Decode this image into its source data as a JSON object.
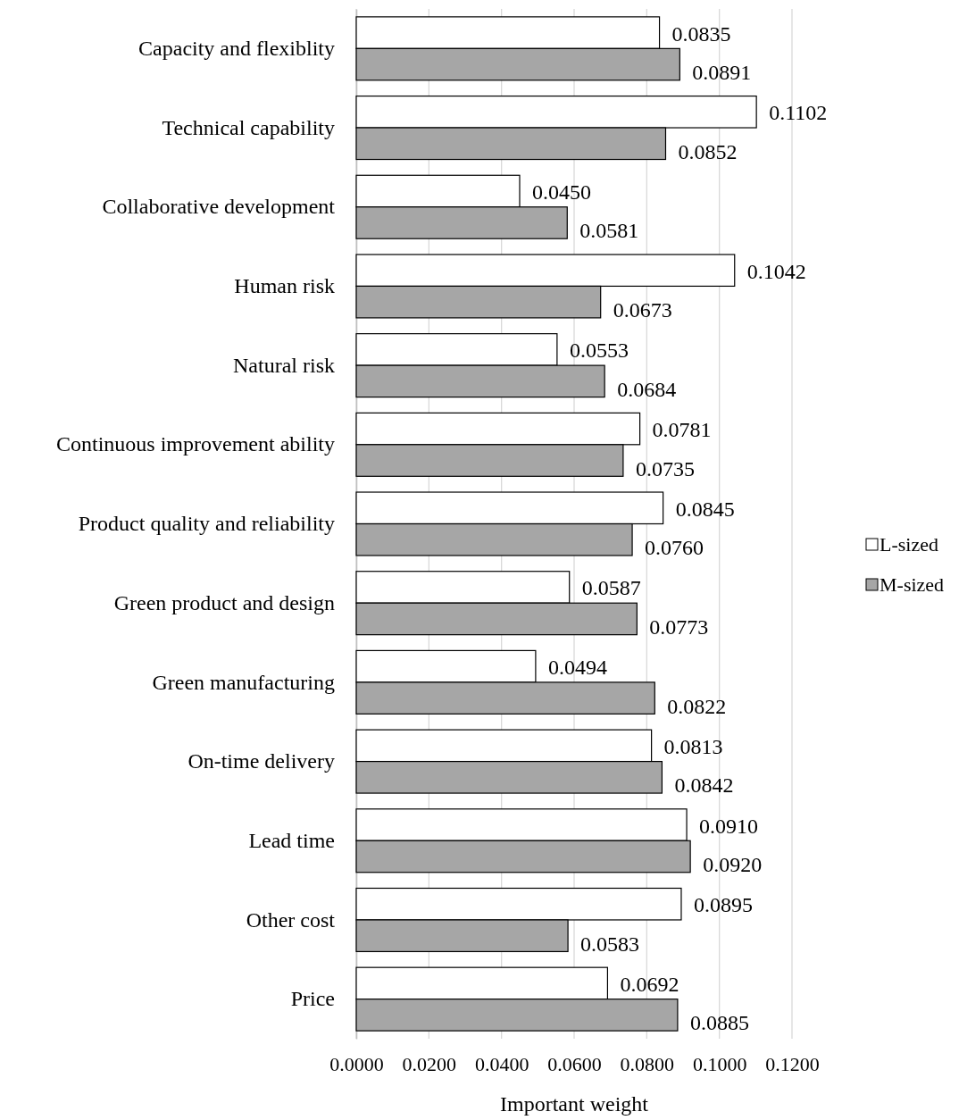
{
  "chart_data": {
    "type": "bar",
    "orientation": "horizontal",
    "xlabel": "Important weight",
    "categories": [
      "Capacity and flexiblity",
      "Technical capability",
      "Collaborative development",
      "Human risk",
      "Natural risk",
      "Continuous improvement ability",
      "Product quality and reliability",
      "Green product and design",
      "Green manufacturing",
      "On-time delivery",
      "Lead time",
      "Other cost",
      "Price"
    ],
    "series": [
      {
        "name": "L-sized",
        "color": "#ffffff",
        "values": [
          0.0835,
          0.1102,
          0.045,
          0.1042,
          0.0553,
          0.0781,
          0.0845,
          0.0587,
          0.0494,
          0.0813,
          0.091,
          0.0895,
          0.0692
        ],
        "value_labels": [
          "0.0835",
          "0.1102",
          "0.0450",
          "0.1042",
          "0.0553",
          "0.0781",
          "0.0845",
          "0.0587",
          "0.0494",
          "0.0813",
          "0.0910",
          "0.0895",
          "0.0692"
        ]
      },
      {
        "name": "M-sized",
        "color": "#a6a6a6",
        "values": [
          0.0891,
          0.0852,
          0.0581,
          0.0673,
          0.0684,
          0.0735,
          0.076,
          0.0773,
          0.0822,
          0.0842,
          0.092,
          0.0583,
          0.0885
        ],
        "value_labels": [
          "0.0891",
          "0.0852",
          "0.0581",
          "0.0673",
          "0.0684",
          "0.0735",
          "0.0760",
          "0.0773",
          "0.0822",
          "0.0842",
          "0.0920",
          "0.0583",
          "0.0885"
        ]
      }
    ],
    "xlim": [
      0,
      0.12
    ],
    "xticks": [
      {
        "value": 0,
        "label": "0.0000"
      },
      {
        "value": 0.02,
        "label": "0.0200"
      },
      {
        "value": 0.04,
        "label": "0.0400"
      },
      {
        "value": 0.06,
        "label": "0.0600"
      },
      {
        "value": 0.08,
        "label": "0.0800"
      },
      {
        "value": 0.1,
        "label": "0.1000"
      },
      {
        "value": 0.12,
        "label": "0.1200"
      }
    ],
    "grid": "x",
    "legend": "right"
  }
}
